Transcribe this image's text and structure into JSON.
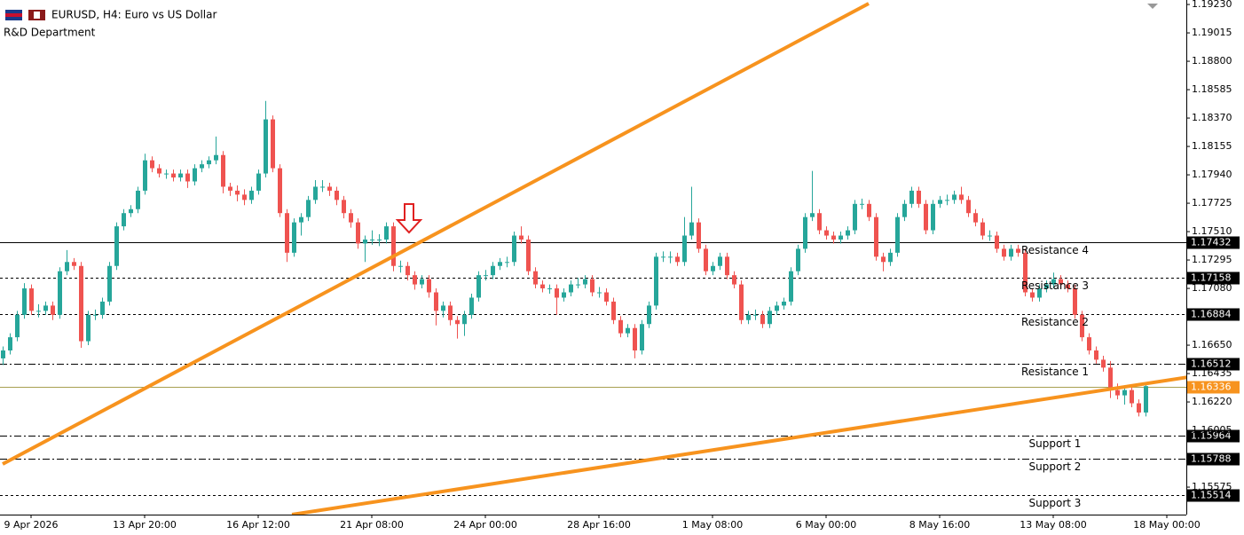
{
  "chart_data": {
    "type": "candlestick",
    "title": "EURUSD, H4:  Euro vs US Dollar",
    "subtitle": "R&D Department",
    "bull_color": "#26a69a",
    "bear_color": "#ef5350",
    "ylim": [
      1.15367,
      1.19264
    ],
    "yticks": [
      {
        "value": 1.1923,
        "label": "1.19230"
      },
      1.19015,
      {
        "value": 1.188,
        "label": "1.18800"
      },
      1.18585,
      {
        "value": 1.1837,
        "label": "1.18370"
      },
      1.18155,
      {
        "value": 1.1794,
        "label": "1.17940"
      },
      1.17725,
      {
        "value": 1.1751,
        "label": "1.17510"
      },
      1.17295,
      {
        "value": 1.1708,
        "label": "1.17080"
      },
      {
        "value": 1.1665,
        "label": "1.16650"
      },
      1.16435,
      {
        "value": 1.1622,
        "label": "1.16220"
      },
      1.16005,
      1.15575
    ],
    "xticks": [
      {
        "value": 4,
        "label": "9 Apr 2026"
      },
      {
        "value": 20,
        "label": "13 Apr 20:00"
      },
      {
        "value": 36,
        "label": "16 Apr 12:00"
      },
      {
        "value": 52,
        "label": "21 Apr 08:00"
      },
      {
        "value": 68,
        "label": "24 Apr 00:00"
      },
      {
        "value": 84,
        "label": "28 Apr 16:00"
      },
      {
        "value": 100,
        "label": "1 May 08:00"
      },
      {
        "value": 116,
        "label": "6 May 00:00"
      },
      {
        "value": 132,
        "label": "8 May 16:00"
      },
      {
        "value": 148,
        "label": "13 May 08:00"
      },
      {
        "value": 164,
        "label": "18 May 00:00"
      }
    ],
    "levels": [
      {
        "name": "Resistance 4",
        "value": 1.17432,
        "style": "solid",
        "color": "#000000",
        "box": "#000000"
      },
      {
        "name": "Resistance 3",
        "value": 1.17158,
        "style": "dotted",
        "color": "#000000",
        "box": "#000000"
      },
      {
        "name": "Resistance 2",
        "value": 1.16884,
        "style": "dotted",
        "color": "#000000",
        "box": "#000000"
      },
      {
        "name": "Resistance 1",
        "value": 1.16512,
        "style": "dashdot",
        "color": "#000000",
        "box": "#000000"
      },
      {
        "value": 1.16336,
        "style": "solid",
        "color": "#a8a050",
        "box": "#f7931e"
      },
      {
        "name": "Support 1",
        "value": 1.15964,
        "style": "dashdot",
        "color": "#000000",
        "box": "#000000"
      },
      {
        "name": "Support 2",
        "value": 1.15788,
        "style": "dashdot",
        "color": "#000000",
        "box": "#000000"
      },
      {
        "name": "Support 3",
        "value": 1.15514,
        "style": "dotted",
        "color": "#000000",
        "box": "#000000"
      }
    ],
    "trendlines": [
      {
        "color": "#f7931e",
        "x": [
          0,
          122
        ],
        "y": [
          1.1575,
          1.19237
        ]
      },
      {
        "color": "#f7931e",
        "x": [
          40.75,
          167
        ],
        "y": [
          1.15367,
          1.16408
        ]
      }
    ],
    "ohlc": [
      [
        1.1655,
        1.1664,
        1.165,
        1.1661
      ],
      [
        1.1661,
        1.1674,
        1.1658,
        1.1671
      ],
      [
        1.1671,
        1.1691,
        1.1668,
        1.1688
      ],
      [
        1.1688,
        1.1712,
        1.1685,
        1.1708
      ],
      [
        1.1708,
        1.1711,
        1.1688,
        1.1691
      ],
      [
        1.1691,
        1.1696,
        1.1686,
        1.1691
      ],
      [
        1.1691,
        1.1698,
        1.1688,
        1.1695
      ],
      [
        1.1695,
        1.1698,
        1.1684,
        1.1688
      ],
      [
        1.1688,
        1.1724,
        1.1685,
        1.1721
      ],
      [
        1.1721,
        1.1737,
        1.1718,
        1.1728
      ],
      [
        1.1728,
        1.1731,
        1.1722,
        1.1725
      ],
      [
        1.1725,
        1.1728,
        1.1663,
        1.1668
      ],
      [
        1.1668,
        1.1691,
        1.1665,
        1.1688
      ],
      [
        1.1688,
        1.1692,
        1.1684,
        1.1688
      ],
      [
        1.1688,
        1.1701,
        1.1685,
        1.1698
      ],
      [
        1.1698,
        1.1728,
        1.1695,
        1.1725
      ],
      [
        1.1725,
        1.1758,
        1.1722,
        1.1755
      ],
      [
        1.1755,
        1.1768,
        1.1752,
        1.1765
      ],
      [
        1.1765,
        1.1771,
        1.1762,
        1.1768
      ],
      [
        1.1768,
        1.1785,
        1.1765,
        1.1782
      ],
      [
        1.1782,
        1.181,
        1.1779,
        1.1805
      ],
      [
        1.1805,
        1.1808,
        1.1796,
        1.1799
      ],
      [
        1.1799,
        1.1802,
        1.1792,
        1.1795
      ],
      [
        1.1795,
        1.1798,
        1.1791,
        1.1795
      ],
      [
        1.1795,
        1.1798,
        1.1789,
        1.1792
      ],
      [
        1.1792,
        1.1798,
        1.1789,
        1.1795
      ],
      [
        1.1795,
        1.1798,
        1.1784,
        1.1789
      ],
      [
        1.1789,
        1.1802,
        1.1786,
        1.1799
      ],
      [
        1.1799,
        1.1805,
        1.1796,
        1.1802
      ],
      [
        1.1802,
        1.1808,
        1.1799,
        1.1805
      ],
      [
        1.1805,
        1.1823,
        1.1802,
        1.1809
      ],
      [
        1.1809,
        1.1812,
        1.178,
        1.1785
      ],
      [
        1.1785,
        1.1788,
        1.1778,
        1.1782
      ],
      [
        1.1782,
        1.1786,
        1.1774,
        1.1779
      ],
      [
        1.1779,
        1.1783,
        1.1771,
        1.1775
      ],
      [
        1.1775,
        1.1785,
        1.1772,
        1.1782
      ],
      [
        1.1782,
        1.1798,
        1.1779,
        1.1795
      ],
      [
        1.1795,
        1.185,
        1.1792,
        1.1836
      ],
      [
        1.1836,
        1.1839,
        1.1796,
        1.1799
      ],
      [
        1.1799,
        1.1802,
        1.1762,
        1.1765
      ],
      [
        1.1765,
        1.1768,
        1.1728,
        1.1735
      ],
      [
        1.1735,
        1.1761,
        1.1732,
        1.1758
      ],
      [
        1.1758,
        1.1765,
        1.1748,
        1.1762
      ],
      [
        1.1762,
        1.1778,
        1.1759,
        1.1775
      ],
      [
        1.1775,
        1.179,
        1.1772,
        1.1785
      ],
      [
        1.1785,
        1.179,
        1.1781,
        1.1785
      ],
      [
        1.1785,
        1.1788,
        1.1778,
        1.1782
      ],
      [
        1.1782,
        1.1785,
        1.1771,
        1.1775
      ],
      [
        1.1775,
        1.1778,
        1.1761,
        1.1765
      ],
      [
        1.1765,
        1.1768,
        1.1754,
        1.1758
      ],
      [
        1.1758,
        1.1761,
        1.1738,
        1.1742
      ],
      [
        1.1742,
        1.1748,
        1.1728,
        1.1745
      ],
      [
        1.1745,
        1.1752,
        1.1741,
        1.1745
      ],
      [
        1.1745,
        1.1749,
        1.174,
        1.1745
      ],
      [
        1.1745,
        1.1758,
        1.1742,
        1.1755
      ],
      [
        1.1755,
        1.1758,
        1.1721,
        1.1725
      ],
      [
        1.1725,
        1.1729,
        1.172,
        1.1725
      ],
      [
        1.1725,
        1.1728,
        1.1714,
        1.1718
      ],
      [
        1.1718,
        1.1721,
        1.1707,
        1.1711
      ],
      [
        1.1711,
        1.1718,
        1.1708,
        1.1715
      ],
      [
        1.1715,
        1.1718,
        1.1701,
        1.1705
      ],
      [
        1.1705,
        1.1708,
        1.168,
        1.1691
      ],
      [
        1.1691,
        1.1698,
        1.1686,
        1.1695
      ],
      [
        1.1695,
        1.1698,
        1.168,
        1.1684
      ],
      [
        1.1684,
        1.1687,
        1.167,
        1.1681
      ],
      [
        1.1681,
        1.1691,
        1.1672,
        1.1688
      ],
      [
        1.1688,
        1.1704,
        1.1685,
        1.1701
      ],
      [
        1.1701,
        1.1721,
        1.1698,
        1.1718
      ],
      [
        1.1718,
        1.1722,
        1.1714,
        1.1718
      ],
      [
        1.1718,
        1.1728,
        1.1715,
        1.1725
      ],
      [
        1.1725,
        1.1731,
        1.1722,
        1.1728
      ],
      [
        1.1728,
        1.1732,
        1.1724,
        1.1728
      ],
      [
        1.1728,
        1.1751,
        1.1725,
        1.1748
      ],
      [
        1.1748,
        1.1755,
        1.1742,
        1.1745
      ],
      [
        1.1745,
        1.1748,
        1.1718,
        1.1721
      ],
      [
        1.1721,
        1.1724,
        1.1708,
        1.1711
      ],
      [
        1.1711,
        1.1714,
        1.1705,
        1.1708
      ],
      [
        1.1708,
        1.1711,
        1.1704,
        1.1708
      ],
      [
        1.1708,
        1.1711,
        1.1688,
        1.1701
      ],
      [
        1.1701,
        1.1708,
        1.1698,
        1.1705
      ],
      [
        1.1705,
        1.1714,
        1.1702,
        1.1711
      ],
      [
        1.1711,
        1.1716,
        1.1708,
        1.1711
      ],
      [
        1.1711,
        1.1718,
        1.1708,
        1.1715
      ],
      [
        1.1715,
        1.1718,
        1.1702,
        1.1705
      ],
      [
        1.1705,
        1.1709,
        1.1701,
        1.1705
      ],
      [
        1.1705,
        1.1708,
        1.1695,
        1.1698
      ],
      [
        1.1698,
        1.1701,
        1.1681,
        1.1684
      ],
      [
        1.1684,
        1.1687,
        1.1671,
        1.1674
      ],
      [
        1.1674,
        1.1681,
        1.1671,
        1.1678
      ],
      [
        1.1678,
        1.1681,
        1.1655,
        1.1661
      ],
      [
        1.1661,
        1.1684,
        1.1658,
        1.1681
      ],
      [
        1.1681,
        1.1698,
        1.1678,
        1.1695
      ],
      [
        1.1695,
        1.1735,
        1.1692,
        1.1732
      ],
      [
        1.1732,
        1.1736,
        1.1728,
        1.1732
      ],
      [
        1.1732,
        1.1736,
        1.1727,
        1.1732
      ],
      [
        1.1732,
        1.1735,
        1.1725,
        1.1728
      ],
      [
        1.1728,
        1.1762,
        1.1725,
        1.1748
      ],
      [
        1.1748,
        1.1785,
        1.1745,
        1.1758
      ],
      [
        1.1758,
        1.1761,
        1.1735,
        1.1738
      ],
      [
        1.1738,
        1.1741,
        1.1718,
        1.1721
      ],
      [
        1.1721,
        1.1728,
        1.1718,
        1.1725
      ],
      [
        1.1725,
        1.1735,
        1.1722,
        1.1732
      ],
      [
        1.1732,
        1.1735,
        1.1715,
        1.1718
      ],
      [
        1.1718,
        1.1721,
        1.1708,
        1.1711
      ],
      [
        1.1711,
        1.1714,
        1.1681,
        1.1684
      ],
      [
        1.1684,
        1.1691,
        1.1681,
        1.1688
      ],
      [
        1.1688,
        1.1692,
        1.1684,
        1.1688
      ],
      [
        1.1688,
        1.1691,
        1.1678,
        1.1681
      ],
      [
        1.1681,
        1.1694,
        1.1678,
        1.1691
      ],
      [
        1.1691,
        1.1698,
        1.1688,
        1.1695
      ],
      [
        1.1695,
        1.1701,
        1.1692,
        1.1698
      ],
      [
        1.1698,
        1.1724,
        1.1695,
        1.1721
      ],
      [
        1.1721,
        1.1741,
        1.1718,
        1.1738
      ],
      [
        1.1738,
        1.1765,
        1.1735,
        1.1762
      ],
      [
        1.1762,
        1.1797,
        1.1759,
        1.1765
      ],
      [
        1.1765,
        1.1768,
        1.1749,
        1.1752
      ],
      [
        1.1752,
        1.1755,
        1.1745,
        1.1748
      ],
      [
        1.1748,
        1.1751,
        1.1742,
        1.1745
      ],
      [
        1.1745,
        1.1751,
        1.1742,
        1.1748
      ],
      [
        1.1748,
        1.1755,
        1.1745,
        1.1752
      ],
      [
        1.1752,
        1.1775,
        1.1749,
        1.1772
      ],
      [
        1.1772,
        1.1776,
        1.1768,
        1.1772
      ],
      [
        1.1772,
        1.1775,
        1.1759,
        1.1762
      ],
      [
        1.1762,
        1.1765,
        1.1729,
        1.1732
      ],
      [
        1.1732,
        1.1735,
        1.1721,
        1.1728
      ],
      [
        1.1728,
        1.1738,
        1.1725,
        1.1735
      ],
      [
        1.1735,
        1.1765,
        1.1732,
        1.1762
      ],
      [
        1.1762,
        1.1775,
        1.1759,
        1.1772
      ],
      [
        1.1772,
        1.1785,
        1.1769,
        1.1782
      ],
      [
        1.1782,
        1.1785,
        1.1769,
        1.1772
      ],
      [
        1.1772,
        1.1775,
        1.1749,
        1.1752
      ],
      [
        1.1752,
        1.1775,
        1.1749,
        1.1772
      ],
      [
        1.1772,
        1.1778,
        1.1769,
        1.1775
      ],
      [
        1.1775,
        1.1779,
        1.1771,
        1.1775
      ],
      [
        1.1775,
        1.1782,
        1.1772,
        1.1779
      ],
      [
        1.1779,
        1.1785,
        1.1772,
        1.1775
      ],
      [
        1.1775,
        1.1778,
        1.1762,
        1.1765
      ],
      [
        1.1765,
        1.1768,
        1.1755,
        1.1758
      ],
      [
        1.1758,
        1.1761,
        1.1745,
        1.1748
      ],
      [
        1.1748,
        1.1752,
        1.1744,
        1.1748
      ],
      [
        1.1748,
        1.1751,
        1.1735,
        1.1738
      ],
      [
        1.1738,
        1.1741,
        1.1729,
        1.1732
      ],
      [
        1.1732,
        1.1741,
        1.1729,
        1.1738
      ],
      [
        1.1738,
        1.1741,
        1.1732,
        1.1735
      ],
      [
        1.1735,
        1.1738,
        1.1702,
        1.1705
      ],
      [
        1.1705,
        1.1708,
        1.1698,
        1.1701
      ],
      [
        1.1701,
        1.1711,
        1.1698,
        1.1708
      ],
      [
        1.1708,
        1.1714,
        1.1705,
        1.1711
      ],
      [
        1.1711,
        1.172,
        1.1708,
        1.1715
      ],
      [
        1.1715,
        1.1718,
        1.1708,
        1.1711
      ],
      [
        1.1711,
        1.1714,
        1.1705,
        1.1708
      ],
      [
        1.1708,
        1.1711,
        1.1685,
        1.1688
      ],
      [
        1.1688,
        1.1691,
        1.1668,
        1.1671
      ],
      [
        1.1671,
        1.1674,
        1.1658,
        1.1661
      ],
      [
        1.1661,
        1.1664,
        1.1651,
        1.1654
      ],
      [
        1.1654,
        1.1657,
        1.1645,
        1.1648
      ],
      [
        1.1648,
        1.1653,
        1.1625,
        1.1631
      ],
      [
        1.1631,
        1.1636,
        1.1624,
        1.1627
      ],
      [
        1.1627,
        1.1634,
        1.162,
        1.1631
      ],
      [
        1.1631,
        1.1634,
        1.1618,
        1.1621
      ],
      [
        1.1621,
        1.1624,
        1.1611,
        1.1614
      ],
      [
        1.1614,
        1.1637,
        1.1611,
        1.1634
      ]
    ]
  }
}
